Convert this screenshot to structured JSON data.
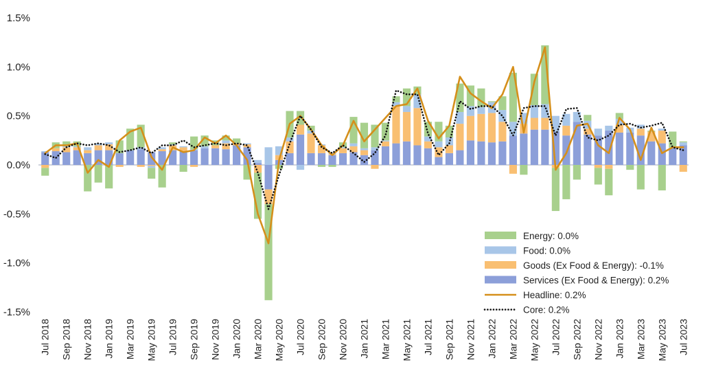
{
  "chart_data": {
    "type": "bar",
    "title": "",
    "xlabel": "",
    "ylabel": "",
    "ylim": [
      -1.5,
      1.5
    ],
    "yticks": [
      "1.5%",
      "1.0%",
      "0.5%",
      "0.0%",
      "-0.5%",
      "-1.0%",
      "-1.5%"
    ],
    "ytick_values": [
      1.5,
      1.0,
      0.5,
      0.0,
      -0.5,
      -1.0,
      -1.5
    ],
    "months": [
      "Jul 2018",
      "Aug 2018",
      "Sep 2018",
      "Oct 2018",
      "Nov 2018",
      "Dec 2018",
      "Jan 2019",
      "Feb 2019",
      "Mar 2019",
      "Apr 2019",
      "May 2019",
      "Jun 2019",
      "Jul 2019",
      "Aug 2019",
      "Sep 2019",
      "Oct 2019",
      "Nov 2019",
      "Dec 2019",
      "Jan 2020",
      "Feb 2020",
      "Mar 2020",
      "Apr 2020",
      "May 2020",
      "Jun 2020",
      "Jul 2020",
      "Aug 2020",
      "Sep 2020",
      "Oct 2020",
      "Nov 2020",
      "Dec 2020",
      "Jan 2021",
      "Feb 2021",
      "Mar 2021",
      "Apr 2021",
      "May 2021",
      "Jun 2021",
      "Jul 2021",
      "Aug 2021",
      "Sep 2021",
      "Oct 2021",
      "Nov 2021",
      "Dec 2021",
      "Jan 2022",
      "Feb 2022",
      "Mar 2022",
      "Apr 2022",
      "May 2022",
      "Jun 2022",
      "Jul 2022",
      "Aug 2022",
      "Sep 2022",
      "Oct 2022",
      "Nov 2022",
      "Dec 2022",
      "Jan 2023",
      "Feb 2023",
      "Mar 2023",
      "Apr 2023",
      "May 2023",
      "Jun 2023",
      "Jul 2023"
    ],
    "x_tick_labels": [
      "Jul 2018",
      "Sep 2018",
      "Nov 2018",
      "Jan 2019",
      "Mar 2019",
      "May 2019",
      "Jul 2019",
      "Sep 2019",
      "Nov 2019",
      "Jan 2020",
      "Mar 2020",
      "May 2020",
      "Jul 2020",
      "Sep 2020",
      "Nov 2020",
      "Jan 2021",
      "Mar 2021",
      "May 2021",
      "Jul 2021",
      "Sep 2021",
      "Nov 2021",
      "Jan 2022",
      "Mar 2022",
      "May 2022",
      "Jul 2022",
      "Sep 2022",
      "Nov 2022",
      "Jan 2023",
      "Mar 2023",
      "May 2023",
      "Jul 2023"
    ],
    "bar_series": [
      {
        "key": "services",
        "name": "Services (Ex Food & Energy)",
        "color": "#8c9fd9",
        "values": [
          0.13,
          0.14,
          0.13,
          0.15,
          0.12,
          0.15,
          0.15,
          0.12,
          0.15,
          0.16,
          0.13,
          0.14,
          0.15,
          0.14,
          0.15,
          0.17,
          0.17,
          0.16,
          0.2,
          0.18,
          0.02,
          -0.25,
          0.05,
          0.12,
          0.31,
          0.12,
          0.12,
          0.1,
          0.12,
          0.13,
          0.1,
          0.15,
          0.19,
          0.22,
          0.24,
          0.2,
          0.17,
          0.08,
          0.12,
          0.15,
          0.25,
          0.24,
          0.23,
          0.24,
          0.3,
          0.32,
          0.36,
          0.36,
          0.34,
          0.3,
          0.44,
          0.31,
          0.3,
          0.35,
          0.33,
          0.33,
          0.3,
          0.24,
          0.22,
          0.17,
          0.2
        ]
      },
      {
        "key": "goods",
        "name": "Goods (Ex Food & Energy)",
        "color": "#f9bf72",
        "values": [
          -0.03,
          0.03,
          0.05,
          0.03,
          0.03,
          0.05,
          0.06,
          -0.02,
          0.0,
          -0.02,
          -0.01,
          0.02,
          0.05,
          0.04,
          -0.02,
          0.0,
          0.03,
          0.06,
          0.02,
          0.03,
          -0.08,
          -0.15,
          0.05,
          0.12,
          0.1,
          0.2,
          0.08,
          0.01,
          0.05,
          0.06,
          0.05,
          -0.04,
          0.05,
          0.38,
          0.3,
          0.38,
          0.07,
          0.1,
          0.08,
          0.27,
          0.25,
          0.28,
          0.3,
          0.2,
          -0.09,
          0.1,
          0.12,
          0.12,
          -0.03,
          0.1,
          0.0,
          0.06,
          -0.03,
          -0.04,
          0.08,
          0.0,
          0.07,
          0.1,
          0.13,
          0.0,
          -0.07
        ]
      },
      {
        "key": "food",
        "name": "Food",
        "color": "#a8c6e8",
        "values": [
          0.01,
          0.0,
          0.01,
          0.01,
          0.03,
          0.02,
          0.02,
          0.0,
          0.0,
          0.02,
          -0.02,
          0.02,
          0.01,
          0.01,
          0.01,
          0.02,
          0.0,
          0.03,
          0.0,
          0.01,
          0.03,
          0.18,
          0.09,
          0.04,
          -0.05,
          0.03,
          0.01,
          0.01,
          0.01,
          0.03,
          0.02,
          0.03,
          0.01,
          0.04,
          0.06,
          0.14,
          0.05,
          0.06,
          0.08,
          0.12,
          0.1,
          0.07,
          0.11,
          0.12,
          0.14,
          0.11,
          0.13,
          0.14,
          0.16,
          0.12,
          0.1,
          0.08,
          0.07,
          0.05,
          0.06,
          0.05,
          0.04,
          0.0,
          0.02,
          0.01,
          0.03
        ]
      },
      {
        "key": "energy",
        "name": "Energy",
        "color": "#a8d08d",
        "values": [
          -0.08,
          0.06,
          0.05,
          0.05,
          -0.27,
          -0.18,
          -0.24,
          0.13,
          0.22,
          0.23,
          -0.11,
          -0.23,
          0.02,
          -0.07,
          0.13,
          0.11,
          0.05,
          0.05,
          0.05,
          -0.15,
          -0.47,
          -0.98,
          -0.04,
          0.27,
          0.14,
          0.05,
          -0.02,
          -0.02,
          0.05,
          0.27,
          0.26,
          0.23,
          0.18,
          0.06,
          0.18,
          0.08,
          0.15,
          0.2,
          0.12,
          0.29,
          0.21,
          0.19,
          0.01,
          0.14,
          0.5,
          -0.1,
          0.32,
          0.6,
          -0.44,
          -0.35,
          -0.15,
          0.06,
          -0.17,
          -0.27,
          0.06,
          -0.05,
          -0.25,
          0.01,
          -0.26,
          0.16,
          0.01
        ]
      }
    ],
    "line_series": [
      {
        "key": "headline",
        "name": "Headline",
        "color": "#d58f1b",
        "style": "solid",
        "values": [
          0.12,
          0.2,
          0.2,
          0.22,
          -0.08,
          0.05,
          -0.02,
          0.25,
          0.34,
          0.38,
          0.08,
          -0.05,
          0.18,
          0.13,
          0.15,
          0.28,
          0.22,
          0.3,
          0.2,
          0.05,
          -0.5,
          -0.8,
          0.05,
          0.42,
          0.5,
          0.36,
          0.2,
          0.1,
          0.2,
          0.45,
          0.24,
          0.36,
          0.48,
          0.6,
          0.62,
          0.78,
          0.45,
          0.27,
          0.4,
          0.9,
          0.73,
          0.65,
          0.58,
          0.72,
          1.0,
          0.33,
          0.85,
          1.2,
          -0.05,
          0.12,
          0.4,
          0.42,
          0.2,
          0.12,
          0.48,
          0.36,
          0.05,
          0.38,
          0.12,
          0.18,
          0.18
        ]
      },
      {
        "key": "core",
        "name": "Core",
        "color": "#111111",
        "style": "dotted",
        "values": [
          0.11,
          0.07,
          0.18,
          0.22,
          0.2,
          0.22,
          0.2,
          0.13,
          0.15,
          0.18,
          0.12,
          0.2,
          0.2,
          0.25,
          0.18,
          0.2,
          0.22,
          0.2,
          0.22,
          0.2,
          -0.08,
          -0.45,
          -0.1,
          0.22,
          0.5,
          0.36,
          0.18,
          0.12,
          0.2,
          0.12,
          0.03,
          0.12,
          0.3,
          0.76,
          0.72,
          0.72,
          0.32,
          0.1,
          0.22,
          0.65,
          0.57,
          0.6,
          0.6,
          0.5,
          0.3,
          0.58,
          0.6,
          0.6,
          0.3,
          0.57,
          0.58,
          0.28,
          0.25,
          0.3,
          0.41,
          0.42,
          0.38,
          0.4,
          0.43,
          0.18,
          0.15
        ]
      }
    ],
    "legend": {
      "placement": "bottom-right",
      "entries": [
        {
          "key": "energy",
          "label": "Energy: 0.0%",
          "kind": "bar",
          "color": "#a8d08d"
        },
        {
          "key": "food",
          "label": "Food: 0.0%",
          "kind": "bar",
          "color": "#a8c6e8"
        },
        {
          "key": "goods",
          "label": "Goods (Ex Food & Energy): -0.1%",
          "kind": "bar",
          "color": "#f9bf72"
        },
        {
          "key": "services",
          "label": "Services (Ex Food & Energy): 0.2%",
          "kind": "bar",
          "color": "#8c9fd9"
        },
        {
          "key": "headline",
          "label": "Headline: 0.2%",
          "kind": "line",
          "color": "#d58f1b"
        },
        {
          "key": "core",
          "label": "Core: 0.2%",
          "kind": "dotted",
          "color": "#111111"
        }
      ]
    },
    "grid": false,
    "zero_line_color": "#cfd3dc"
  }
}
